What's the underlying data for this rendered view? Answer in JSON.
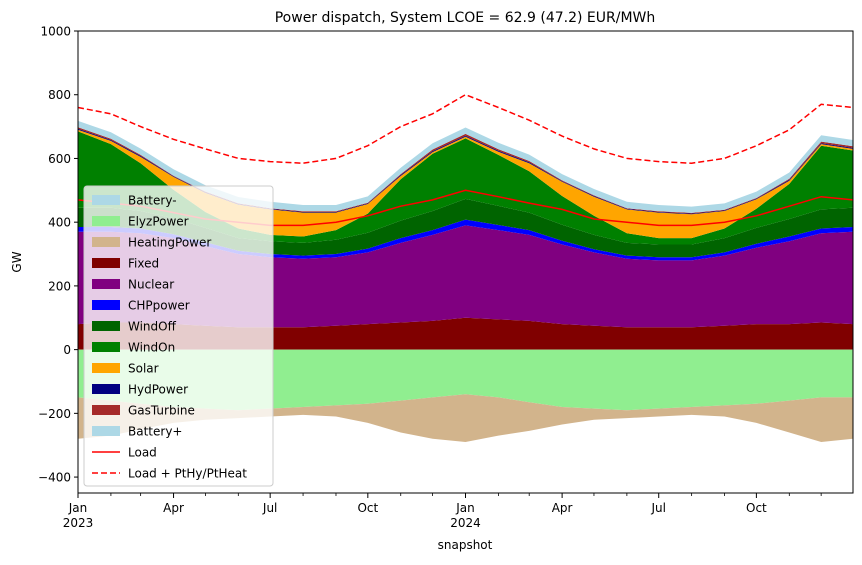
{
  "chart_data": {
    "type": "area",
    "title": "Power dispatch, System LCOE = 62.9 (47.2) EUR/MWh",
    "xlabel": "snapshot",
    "ylabel": "GW",
    "ylim": [
      -450,
      1000
    ],
    "yticks": [
      -400,
      -200,
      0,
      200,
      400,
      600,
      800,
      1000
    ],
    "xlim": [
      "2023-01-01",
      "2024-12-31"
    ],
    "xticks": [
      {
        "date": "2023-01-01",
        "label": "Jan",
        "sublabel": "2023"
      },
      {
        "date": "2023-04-01",
        "label": "Apr",
        "sublabel": ""
      },
      {
        "date": "2023-07-01",
        "label": "Jul",
        "sublabel": ""
      },
      {
        "date": "2023-10-01",
        "label": "Oct",
        "sublabel": ""
      },
      {
        "date": "2024-01-01",
        "label": "Jan",
        "sublabel": "2024"
      },
      {
        "date": "2024-04-01",
        "label": "Apr",
        "sublabel": ""
      },
      {
        "date": "2024-07-01",
        "label": "Jul",
        "sublabel": ""
      },
      {
        "date": "2024-10-01",
        "label": "Oct",
        "sublabel": ""
      }
    ],
    "legend_position": "lower left",
    "legend": [
      {
        "name": "Battery-",
        "kind": "patch",
        "color": "#add8e6"
      },
      {
        "name": "ElyzPower",
        "kind": "patch",
        "color": "#90ee90"
      },
      {
        "name": "HeatingPower",
        "kind": "patch",
        "color": "#d2b48c"
      },
      {
        "name": "Fixed",
        "kind": "patch",
        "color": "#800000"
      },
      {
        "name": "Nuclear",
        "kind": "patch",
        "color": "#800080"
      },
      {
        "name": "CHPpower",
        "kind": "patch",
        "color": "#0000ff"
      },
      {
        "name": "WindOff",
        "kind": "patch",
        "color": "#006400"
      },
      {
        "name": "WindOn",
        "kind": "patch",
        "color": "#008000"
      },
      {
        "name": "Solar",
        "kind": "patch",
        "color": "#ffa500"
      },
      {
        "name": "HydPower",
        "kind": "patch",
        "color": "#000080"
      },
      {
        "name": "GasTurbine",
        "kind": "patch",
        "color": "#a52a2a"
      },
      {
        "name": "Battery+",
        "kind": "patch",
        "color": "#add8e6"
      },
      {
        "name": "Load",
        "kind": "line",
        "color": "#ff0000"
      },
      {
        "name": "Load + PtHy/PtHeat",
        "kind": "dashed",
        "color": "#ff0000"
      }
    ],
    "x": [
      "2023-01-01",
      "2023-02-01",
      "2023-03-01",
      "2023-04-01",
      "2023-05-01",
      "2023-06-01",
      "2023-07-01",
      "2023-08-01",
      "2023-09-01",
      "2023-10-01",
      "2023-11-01",
      "2023-12-01",
      "2024-01-01",
      "2024-02-01",
      "2024-03-01",
      "2024-04-01",
      "2024-05-01",
      "2024-06-01",
      "2024-07-01",
      "2024-08-01",
      "2024-09-01",
      "2024-10-01",
      "2024-11-01",
      "2024-12-01",
      "2024-12-31"
    ],
    "stack_positive": [
      {
        "name": "Fixed",
        "color": "#800000",
        "values": [
          80,
          85,
          85,
          80,
          75,
          70,
          70,
          70,
          75,
          80,
          85,
          90,
          100,
          95,
          90,
          80,
          75,
          70,
          70,
          70,
          75,
          80,
          80,
          85,
          80
        ]
      },
      {
        "name": "Nuclear",
        "color": "#800080",
        "values": [
          290,
          285,
          280,
          270,
          250,
          230,
          220,
          215,
          215,
          225,
          250,
          270,
          290,
          280,
          270,
          250,
          230,
          215,
          210,
          210,
          220,
          240,
          260,
          280,
          290
        ]
      },
      {
        "name": "CHPpower",
        "color": "#0000ff",
        "values": [
          15,
          15,
          15,
          12,
          12,
          10,
          10,
          10,
          10,
          12,
          15,
          15,
          18,
          16,
          15,
          12,
          10,
          10,
          10,
          10,
          10,
          12,
          15,
          15,
          15
        ]
      },
      {
        "name": "WindOff",
        "color": "#006400",
        "values": [
          60,
          60,
          55,
          50,
          45,
          40,
          40,
          40,
          45,
          50,
          55,
          60,
          65,
          60,
          55,
          50,
          45,
          40,
          40,
          40,
          45,
          50,
          55,
          60,
          60
        ]
      },
      {
        "name": "WindOn",
        "color": "#008000",
        "values": [
          240,
          200,
          150,
          90,
          50,
          30,
          20,
          20,
          30,
          60,
          130,
          180,
          190,
          160,
          130,
          90,
          60,
          30,
          20,
          20,
          30,
          60,
          110,
          200,
          180
        ]
      },
      {
        "name": "Solar",
        "color": "#ffa500",
        "values": [
          5,
          10,
          20,
          40,
          60,
          75,
          80,
          75,
          55,
          30,
          10,
          5,
          5,
          10,
          25,
          45,
          60,
          75,
          80,
          75,
          55,
          30,
          10,
          5,
          5
        ]
      },
      {
        "name": "HydPower",
        "color": "#000080",
        "values": [
          3,
          3,
          3,
          2,
          2,
          2,
          2,
          2,
          2,
          2,
          3,
          3,
          3,
          3,
          3,
          2,
          2,
          2,
          2,
          2,
          2,
          2,
          3,
          3,
          3
        ]
      },
      {
        "name": "GasTurbine",
        "color": "#a52a2a",
        "values": [
          5,
          4,
          3,
          2,
          2,
          2,
          2,
          2,
          2,
          2,
          3,
          5,
          6,
          5,
          4,
          2,
          2,
          2,
          2,
          2,
          2,
          2,
          3,
          5,
          5
        ]
      },
      {
        "name": "Battery+",
        "color": "#add8e6",
        "values": [
          20,
          20,
          20,
          20,
          20,
          20,
          20,
          20,
          20,
          20,
          20,
          20,
          20,
          20,
          20,
          20,
          20,
          20,
          20,
          20,
          20,
          20,
          20,
          20,
          20
        ]
      }
    ],
    "stack_negative": [
      {
        "name": "ElyzPower",
        "color": "#90ee90",
        "values": [
          -150,
          -160,
          -170,
          -180,
          -185,
          -190,
          -185,
          -180,
          -175,
          -170,
          -160,
          -150,
          -140,
          -150,
          -165,
          -180,
          -185,
          -190,
          -185,
          -180,
          -175,
          -170,
          -160,
          -150,
          -150
        ]
      },
      {
        "name": "HeatingPower",
        "color": "#d2b48c",
        "values": [
          -130,
          -110,
          -80,
          -50,
          -35,
          -25,
          -25,
          -25,
          -35,
          -60,
          -100,
          -130,
          -150,
          -120,
          -90,
          -55,
          -35,
          -25,
          -25,
          -25,
          -35,
          -60,
          -100,
          -140,
          -130
        ]
      }
    ],
    "lines": [
      {
        "name": "Load",
        "color": "#ff0000",
        "style": "solid",
        "values": [
          470,
          460,
          450,
          430,
          410,
          400,
          390,
          390,
          400,
          420,
          450,
          470,
          500,
          480,
          460,
          440,
          410,
          400,
          390,
          390,
          400,
          420,
          450,
          480,
          470
        ]
      },
      {
        "name": "Load + PtHy/PtHeat",
        "color": "#ff0000",
        "style": "dashed",
        "values": [
          760,
          740,
          700,
          660,
          630,
          600,
          590,
          585,
          600,
          640,
          700,
          740,
          800,
          760,
          720,
          670,
          630,
          600,
          590,
          585,
          600,
          640,
          690,
          770,
          760
        ]
      }
    ]
  }
}
